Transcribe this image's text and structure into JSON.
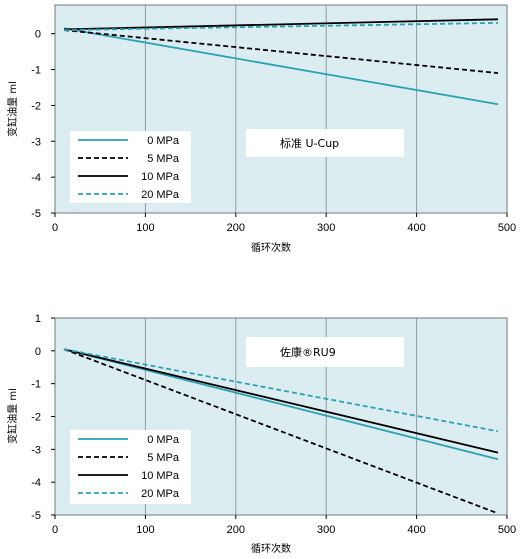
{
  "colors": {
    "plot_bg": "#dcedf1",
    "grid": "#8f9a9d",
    "cyan": "#2aa2b4",
    "black": "#000000"
  },
  "chart_data": [
    {
      "type": "line",
      "annotation": "标准 U-Cup",
      "xlabel": "循环次数",
      "ylabel": "变缸油量 ml",
      "xlim": [
        0,
        500
      ],
      "ylim": [
        -5,
        0.8
      ],
      "xticks": [
        0,
        100,
        200,
        300,
        400,
        500
      ],
      "yticks": [
        0,
        -1,
        -2,
        -3,
        -4,
        -5
      ],
      "grid": true,
      "legend_position": "lower-left",
      "series": [
        {
          "name": "0 MPa",
          "color": "#2aa2b4",
          "dash": "solid",
          "x": [
            10,
            490
          ],
          "y": [
            0.15,
            -1.97
          ]
        },
        {
          "name": "5 MPa",
          "color": "#000000",
          "dash": "dashed",
          "x": [
            10,
            490
          ],
          "y": [
            0.1,
            -1.1
          ]
        },
        {
          "name": "10 MPa",
          "color": "#000000",
          "dash": "solid",
          "x": [
            10,
            490
          ],
          "y": [
            0.12,
            0.4
          ]
        },
        {
          "name": "20 MPa",
          "color": "#2aa2b4",
          "dash": "dashed",
          "x": [
            10,
            490
          ],
          "y": [
            0.1,
            0.3
          ]
        }
      ]
    },
    {
      "type": "line",
      "annotation": "佐康®RU9",
      "xlabel": "循环次数",
      "ylabel": "变缸油量 ml",
      "xlim": [
        0,
        500
      ],
      "ylim": [
        -5,
        1
      ],
      "xticks": [
        0,
        100,
        200,
        300,
        400,
        500
      ],
      "yticks": [
        1,
        0,
        -1,
        -2,
        -3,
        -4,
        -5
      ],
      "grid": true,
      "legend_position": "lower-left",
      "series": [
        {
          "name": "0 MPa",
          "color": "#2aa2b4",
          "dash": "solid",
          "x": [
            10,
            490
          ],
          "y": [
            0.05,
            -3.3
          ]
        },
        {
          "name": "5 MPa",
          "color": "#000000",
          "dash": "dashed",
          "x": [
            10,
            490
          ],
          "y": [
            0.05,
            -4.95
          ]
        },
        {
          "name": "10 MPa",
          "color": "#000000",
          "dash": "solid",
          "x": [
            10,
            490
          ],
          "y": [
            0.05,
            -3.1
          ]
        },
        {
          "name": "20 MPa",
          "color": "#2aa2b4",
          "dash": "dashed",
          "x": [
            10,
            490
          ],
          "y": [
            0.05,
            -2.45
          ]
        }
      ]
    }
  ]
}
